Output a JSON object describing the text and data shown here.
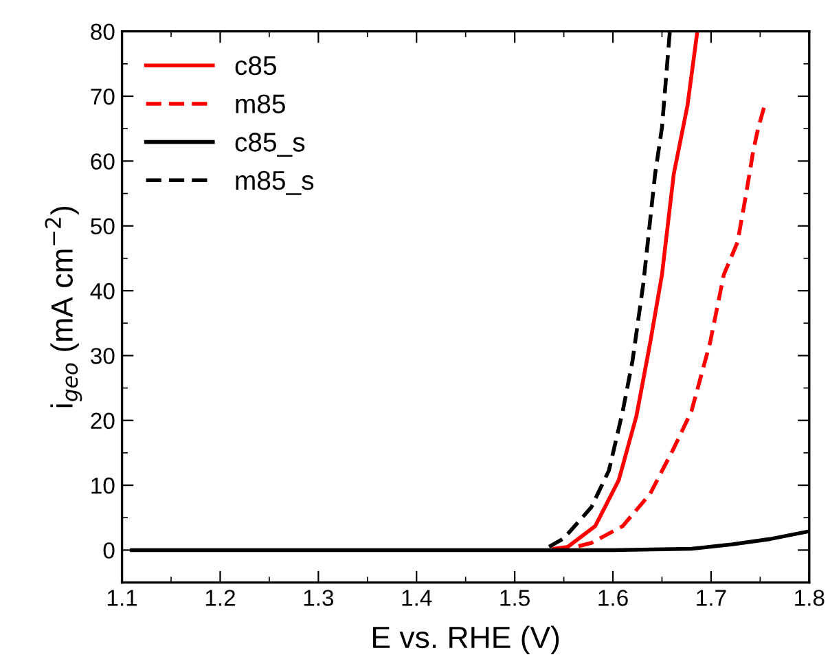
{
  "chart_data": {
    "type": "line",
    "xlabel": "E vs. RHE (V)",
    "ylabel": "i$_{geo}$ (mA cm$^{−2}$)",
    "xlim": [
      1.1,
      1.8
    ],
    "xticks": [
      {
        "value": 1.1,
        "label": "1.1"
      },
      {
        "value": 1.2,
        "label": "1.2"
      },
      {
        "value": 1.3,
        "label": "1.3"
      },
      {
        "value": 1.4,
        "label": "1.4"
      },
      {
        "value": 1.5,
        "label": "1.5"
      },
      {
        "value": 1.6,
        "label": "1.6"
      },
      {
        "value": 1.7,
        "label": "1.7"
      },
      {
        "value": 1.8,
        "label": "1.8"
      }
    ],
    "ylim": [
      -5,
      80
    ],
    "yticks": [
      0,
      10,
      20,
      30,
      40,
      50,
      60,
      70,
      80
    ],
    "grid": false,
    "legend": "top left",
    "marker": "none",
    "series": [
      {
        "name": "c85",
        "color": "#ff0000",
        "line_style": "solid",
        "x": [
          1.54,
          1.554,
          1.582,
          1.606,
          1.624,
          1.638,
          1.65,
          1.662,
          1.676,
          1.686
        ],
        "values": [
          0.2,
          0.5,
          3.7,
          10.8,
          20.7,
          32,
          42.5,
          58,
          68.6,
          80
        ]
      },
      {
        "name": "m85",
        "color": "#ff0000",
        "line_style": "dashed",
        "x": [
          1.565,
          1.578,
          1.61,
          1.638,
          1.662,
          1.68,
          1.699,
          1.713,
          1.727,
          1.736,
          1.743,
          1.748,
          1.754
        ],
        "values": [
          0.6,
          1.1,
          3.7,
          8.7,
          15.7,
          21.4,
          32,
          42.5,
          47.5,
          55.2,
          61.6,
          65.1,
          68.3
        ]
      },
      {
        "name": "c85_s",
        "color": "#000000",
        "line_style": "solid",
        "x": [
          1.11,
          1.3,
          1.5,
          1.6,
          1.68,
          1.722,
          1.76,
          1.8
        ],
        "values": [
          0,
          0,
          0,
          0,
          0.2,
          0.9,
          1.7,
          2.9
        ]
      },
      {
        "name": "m85_s",
        "color": "#000000",
        "line_style": "dashed",
        "x": [
          1.535,
          1.55,
          1.578,
          1.596,
          1.61,
          1.62,
          1.631,
          1.643,
          1.65,
          1.658
        ],
        "values": [
          0.5,
          1.8,
          6.6,
          12.3,
          21.4,
          29.2,
          41.1,
          58,
          65.2,
          80
        ]
      }
    ]
  }
}
